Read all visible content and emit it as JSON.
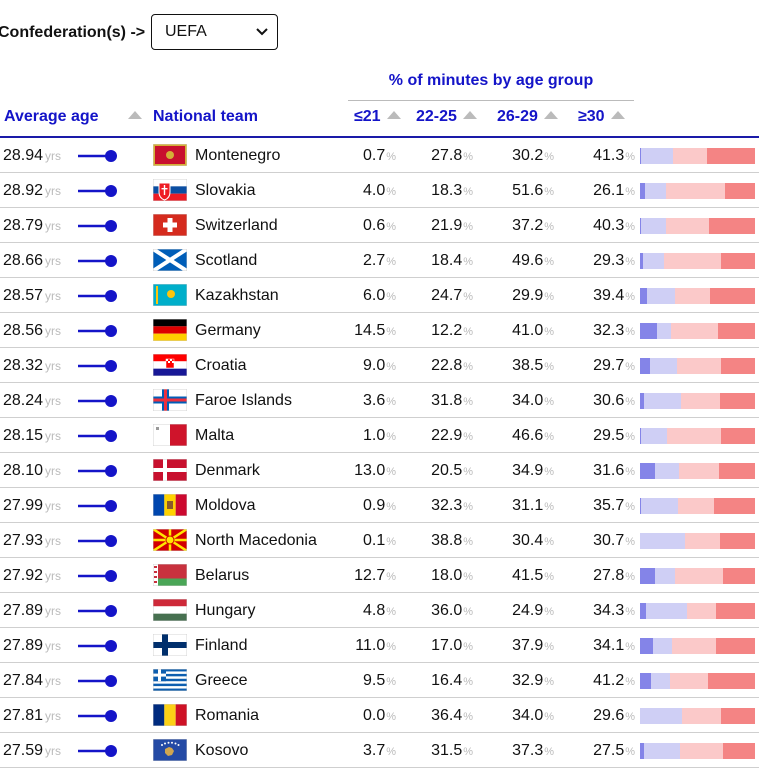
{
  "filter": {
    "label": "Confederation(s) ->",
    "selected": "UEFA"
  },
  "table": {
    "group_title": "% of minutes by age group",
    "headers": {
      "average_age": "Average age",
      "national_team": "National team",
      "u21": "≤21",
      "a22_25": "22-25",
      "a26_29": "26-29",
      "o30": "≥30"
    },
    "unit_yrs": "yrs",
    "unit_pct": "%",
    "rows": [
      {
        "age": "28.94",
        "team": "Montenegro",
        "u21": "0.7",
        "a22_25": "27.8",
        "a26_29": "30.2",
        "o30": "41.3",
        "flag": "montenegro"
      },
      {
        "age": "28.92",
        "team": "Slovakia",
        "u21": "4.0",
        "a22_25": "18.3",
        "a26_29": "51.6",
        "o30": "26.1",
        "flag": "slovakia"
      },
      {
        "age": "28.79",
        "team": "Switzerland",
        "u21": "0.6",
        "a22_25": "21.9",
        "a26_29": "37.2",
        "o30": "40.3",
        "flag": "switzerland"
      },
      {
        "age": "28.66",
        "team": "Scotland",
        "u21": "2.7",
        "a22_25": "18.4",
        "a26_29": "49.6",
        "o30": "29.3",
        "flag": "scotland"
      },
      {
        "age": "28.57",
        "team": "Kazakhstan",
        "u21": "6.0",
        "a22_25": "24.7",
        "a26_29": "29.9",
        "o30": "39.4",
        "flag": "kazakhstan"
      },
      {
        "age": "28.56",
        "team": "Germany",
        "u21": "14.5",
        "a22_25": "12.2",
        "a26_29": "41.0",
        "o30": "32.3",
        "flag": "germany"
      },
      {
        "age": "28.32",
        "team": "Croatia",
        "u21": "9.0",
        "a22_25": "22.8",
        "a26_29": "38.5",
        "o30": "29.7",
        "flag": "croatia"
      },
      {
        "age": "28.24",
        "team": "Faroe Islands",
        "u21": "3.6",
        "a22_25": "31.8",
        "a26_29": "34.0",
        "o30": "30.6",
        "flag": "faroe"
      },
      {
        "age": "28.15",
        "team": "Malta",
        "u21": "1.0",
        "a22_25": "22.9",
        "a26_29": "46.6",
        "o30": "29.5",
        "flag": "malta"
      },
      {
        "age": "28.10",
        "team": "Denmark",
        "u21": "13.0",
        "a22_25": "20.5",
        "a26_29": "34.9",
        "o30": "31.6",
        "flag": "denmark"
      },
      {
        "age": "27.99",
        "team": "Moldova",
        "u21": "0.9",
        "a22_25": "32.3",
        "a26_29": "31.1",
        "o30": "35.7",
        "flag": "moldova"
      },
      {
        "age": "27.93",
        "team": "North Macedonia",
        "u21": "0.1",
        "a22_25": "38.8",
        "a26_29": "30.4",
        "o30": "30.7",
        "flag": "macedonia"
      },
      {
        "age": "27.92",
        "team": "Belarus",
        "u21": "12.7",
        "a22_25": "18.0",
        "a26_29": "41.5",
        "o30": "27.8",
        "flag": "belarus"
      },
      {
        "age": "27.89",
        "team": "Hungary",
        "u21": "4.8",
        "a22_25": "36.0",
        "a26_29": "24.9",
        "o30": "34.3",
        "flag": "hungary"
      },
      {
        "age": "27.89",
        "team": "Finland",
        "u21": "11.0",
        "a22_25": "17.0",
        "a26_29": "37.9",
        "o30": "34.1",
        "flag": "finland"
      },
      {
        "age": "27.84",
        "team": "Greece",
        "u21": "9.5",
        "a22_25": "16.4",
        "a26_29": "32.9",
        "o30": "41.2",
        "flag": "greece"
      },
      {
        "age": "27.81",
        "team": "Romania",
        "u21": "0.0",
        "a22_25": "36.4",
        "a26_29": "34.0",
        "o30": "29.6",
        "flag": "romania"
      },
      {
        "age": "27.59",
        "team": "Kosovo",
        "u21": "3.7",
        "a22_25": "31.5",
        "a26_29": "37.3",
        "o30": "27.5",
        "flag": "kosovo"
      }
    ]
  },
  "colors": {
    "accent": "#1414c8",
    "seg_u21": "#8484e8",
    "seg_22_25": "#cfcff5",
    "seg_26_29": "#fbc9c9",
    "seg_30": "#f48484"
  }
}
